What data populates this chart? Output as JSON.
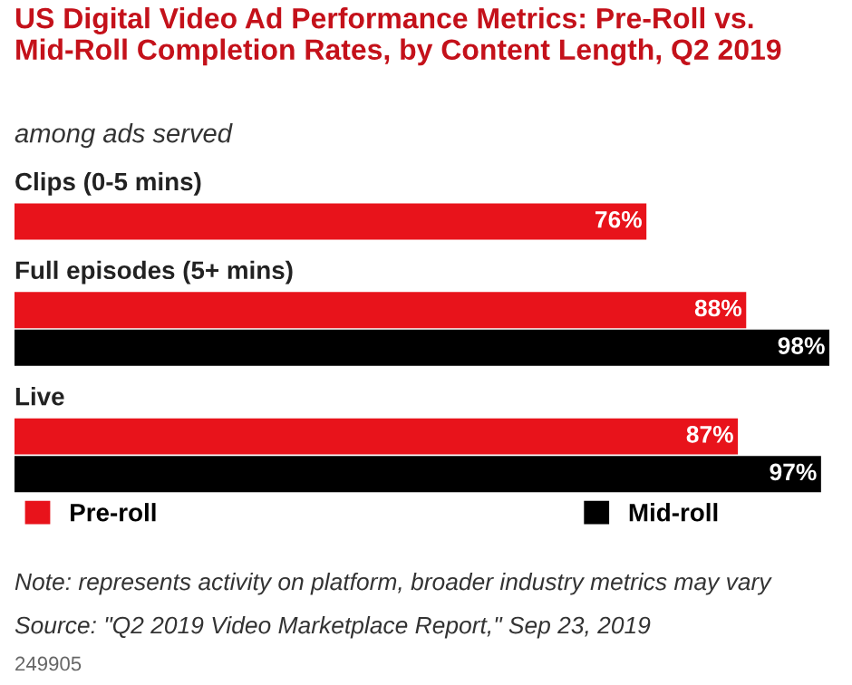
{
  "chart_data": {
    "type": "bar",
    "orientation": "horizontal",
    "title": "US Digital Video Ad Performance Metrics: Pre-Roll vs. Mid-Roll Completion Rates, by Content Length, Q2 2019",
    "subtitle": "among ads served",
    "categories": [
      "Clips (0-5 mins)",
      "Full episodes (5+ mins)",
      "Live"
    ],
    "series": [
      {
        "name": "Pre-roll",
        "color": "#e8131b",
        "values": [
          76,
          88,
          87
        ],
        "value_labels": [
          "76%",
          "88%",
          "87%"
        ]
      },
      {
        "name": "Mid-roll",
        "color": "#000000",
        "values": [
          null,
          98,
          97
        ],
        "value_labels": [
          null,
          "98%",
          "97%"
        ]
      }
    ],
    "legend": "bottom",
    "annotations": [
      "Note: represents activity on platform, broader industry metrics may vary",
      "Source: \"Q2 2019 Video Marketplace Report,\" Sep 23, 2019",
      "249905"
    ]
  }
}
